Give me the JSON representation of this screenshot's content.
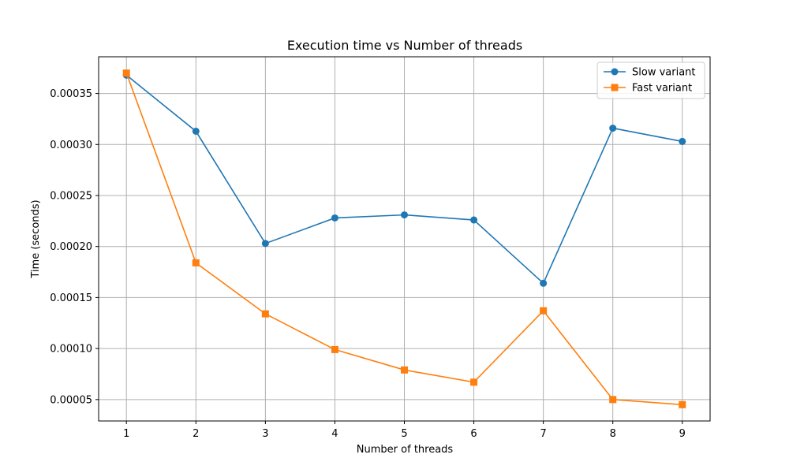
{
  "chart_data": {
    "type": "line",
    "title": "Execution time vs Number of threads",
    "xlabel": "Number of threads",
    "ylabel": "Time (seconds)",
    "x": [
      1,
      2,
      3,
      4,
      5,
      6,
      7,
      8,
      9
    ],
    "xlim": [
      0.6,
      9.4
    ],
    "ylim": [
      2.9e-05,
      0.000386
    ],
    "xticks": [
      "1",
      "2",
      "3",
      "4",
      "5",
      "6",
      "7",
      "8",
      "9"
    ],
    "yticks": [
      {
        "value": 5e-05,
        "label": "0.00005"
      },
      {
        "value": 0.0001,
        "label": "0.00010"
      },
      {
        "value": 0.00015,
        "label": "0.00015"
      },
      {
        "value": 0.0002,
        "label": "0.00020"
      },
      {
        "value": 0.00025,
        "label": "0.00025"
      },
      {
        "value": 0.0003,
        "label": "0.00030"
      },
      {
        "value": 0.00035,
        "label": "0.00035"
      }
    ],
    "grid": true,
    "legend_position": "top-right",
    "series": [
      {
        "name": "Slow variant",
        "color": "#1f77b4",
        "marker": "circle",
        "values": [
          0.000368,
          0.000313,
          0.000203,
          0.000228,
          0.000231,
          0.000226,
          0.000164,
          0.000316,
          0.000303
        ]
      },
      {
        "name": "Fast variant",
        "color": "#ff7f0e",
        "marker": "square",
        "values": [
          0.00037,
          0.000184,
          0.000134,
          9.9e-05,
          7.9e-05,
          6.7e-05,
          0.000137,
          5e-05,
          4.5e-05
        ]
      }
    ]
  }
}
